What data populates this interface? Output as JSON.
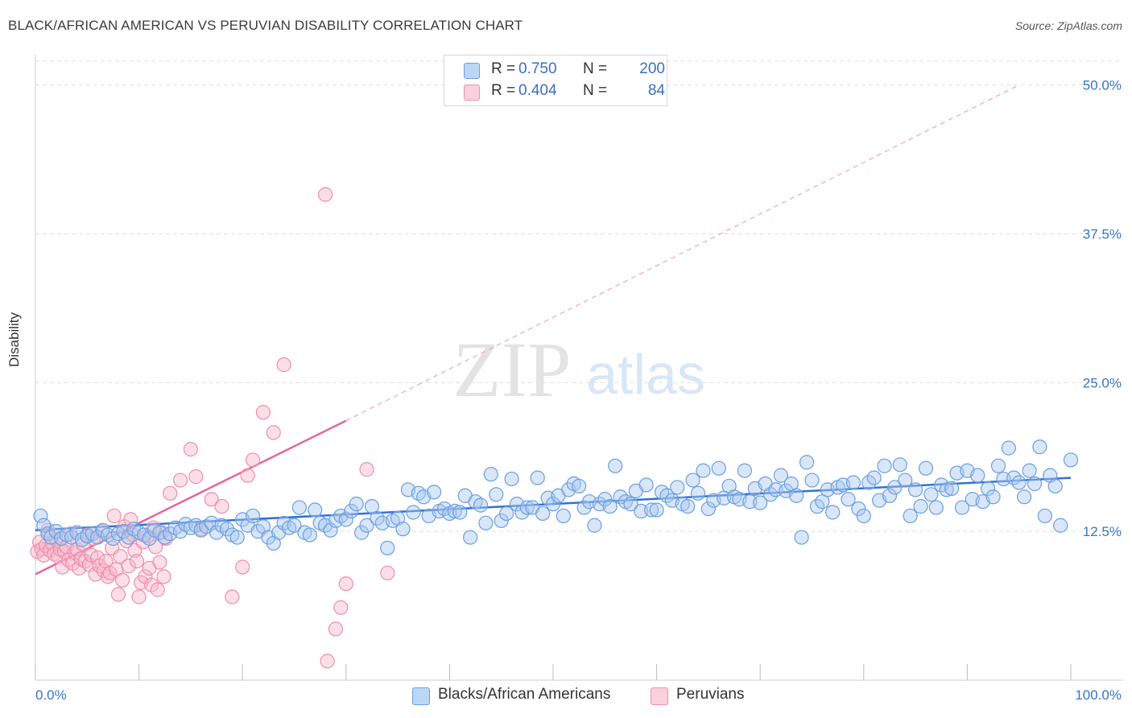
{
  "header": {
    "title": "BLACK/AFRICAN AMERICAN VS PERUVIAN DISABILITY CORRELATION CHART",
    "source_label": "Source: ZipAtlas.com"
  },
  "watermark": {
    "zip": "ZIP",
    "atlas": "atlas"
  },
  "legend_top": [
    {
      "r_label": "R =",
      "r_value": "0.750",
      "n_label": "N =",
      "n_value": "200"
    },
    {
      "r_label": "R =",
      "r_value": "0.404",
      "n_label": "N =",
      "n_value": "84"
    }
  ],
  "legend_bottom": [
    {
      "label": "Blacks/African Americans"
    },
    {
      "label": "Peruvians"
    }
  ],
  "colors": {
    "blue_fill": "#a8c8f0",
    "blue_stroke": "#6a9fe0",
    "blue_line": "#2f72d4",
    "pink_fill": "#f7b9ca",
    "pink_stroke": "#ee8eaa",
    "pink_line": "#e8659a",
    "axis_text": "#3a74c8",
    "grid": "#dddddd"
  },
  "chart_data": {
    "type": "scatter",
    "title": "BLACK/AFRICAN AMERICAN VS PERUVIAN DISABILITY CORRELATION CHART",
    "xlabel": "",
    "ylabel": "Disability",
    "xlim": [
      0,
      100
    ],
    "ylim": [
      0,
      52
    ],
    "x_tick_labels": [
      "0.0%",
      "100.0%"
    ],
    "y_ticks": [
      12.5,
      25.0,
      37.5,
      50.0
    ],
    "y_tick_labels": [
      "12.5%",
      "25.0%",
      "37.5%",
      "50.0%"
    ],
    "series": [
      {
        "name": "Blacks/African Americans",
        "r": 0.75,
        "n": 200,
        "trend": {
          "x": [
            0,
            100
          ],
          "y": [
            12.6,
            17.0
          ],
          "style": "solid"
        },
        "points": [
          [
            0.5,
            13.8
          ],
          [
            0.8,
            13.0
          ],
          [
            1.2,
            12.3
          ],
          [
            1.5,
            12.0
          ],
          [
            2.0,
            12.5
          ],
          [
            2.5,
            11.9
          ],
          [
            3.0,
            12.2
          ],
          [
            3.5,
            12.0
          ],
          [
            4.0,
            12.4
          ],
          [
            4.5,
            11.8
          ],
          [
            5.0,
            12.1
          ],
          [
            5.5,
            12.3
          ],
          [
            6.0,
            12.0
          ],
          [
            6.5,
            12.6
          ],
          [
            7.0,
            12.2
          ],
          [
            7.5,
            11.9
          ],
          [
            8.0,
            12.3
          ],
          [
            8.5,
            12.5
          ],
          [
            9.0,
            12.0
          ],
          [
            9.5,
            12.7
          ],
          [
            10.0,
            12.4
          ],
          [
            10.5,
            12.2
          ],
          [
            11.0,
            11.9
          ],
          [
            11.5,
            12.6
          ],
          [
            12.0,
            12.4
          ],
          [
            12.5,
            12.0
          ],
          [
            13.0,
            12.3
          ],
          [
            13.5,
            12.8
          ],
          [
            14.0,
            12.5
          ],
          [
            14.5,
            13.1
          ],
          [
            15.0,
            12.8
          ],
          [
            15.5,
            13.0
          ],
          [
            16.0,
            12.6
          ],
          [
            16.5,
            12.9
          ],
          [
            17.0,
            13.2
          ],
          [
            17.5,
            12.4
          ],
          [
            18.0,
            13.0
          ],
          [
            18.5,
            12.7
          ],
          [
            19.0,
            12.2
          ],
          [
            19.5,
            12.0
          ],
          [
            20.0,
            13.5
          ],
          [
            20.5,
            13.0
          ],
          [
            21.0,
            13.8
          ],
          [
            21.5,
            12.5
          ],
          [
            22.0,
            12.9
          ],
          [
            22.5,
            12.0
          ],
          [
            23.0,
            11.5
          ],
          [
            23.5,
            12.4
          ],
          [
            24.0,
            13.2
          ],
          [
            24.5,
            12.8
          ],
          [
            25.0,
            13.0
          ],
          [
            25.5,
            14.5
          ],
          [
            26.0,
            12.4
          ],
          [
            26.5,
            12.2
          ],
          [
            27.0,
            14.3
          ],
          [
            27.5,
            13.2
          ],
          [
            28.0,
            13.0
          ],
          [
            28.5,
            12.6
          ],
          [
            29.0,
            13.4
          ],
          [
            29.5,
            13.8
          ],
          [
            30.0,
            13.5
          ],
          [
            30.5,
            14.2
          ],
          [
            31.0,
            14.8
          ],
          [
            31.5,
            12.4
          ],
          [
            32.0,
            13.0
          ],
          [
            32.5,
            14.6
          ],
          [
            33.0,
            13.6
          ],
          [
            33.5,
            13.2
          ],
          [
            34.0,
            11.1
          ],
          [
            34.5,
            13.4
          ],
          [
            35.0,
            13.6
          ],
          [
            35.5,
            12.7
          ],
          [
            36.0,
            16.0
          ],
          [
            36.5,
            14.1
          ],
          [
            37.0,
            15.7
          ],
          [
            37.5,
            15.4
          ],
          [
            38.0,
            13.8
          ],
          [
            38.5,
            15.8
          ],
          [
            39.0,
            14.2
          ],
          [
            39.5,
            14.4
          ],
          [
            40.0,
            14.0
          ],
          [
            40.5,
            14.2
          ],
          [
            41.0,
            14.1
          ],
          [
            41.5,
            15.5
          ],
          [
            42.0,
            12.0
          ],
          [
            42.5,
            15.0
          ],
          [
            43.0,
            14.7
          ],
          [
            43.5,
            13.2
          ],
          [
            44.0,
            17.3
          ],
          [
            44.5,
            15.6
          ],
          [
            45.0,
            13.4
          ],
          [
            45.5,
            14.0
          ],
          [
            46.0,
            16.9
          ],
          [
            46.5,
            14.8
          ],
          [
            47.0,
            14.1
          ],
          [
            47.5,
            14.5
          ],
          [
            48.0,
            14.5
          ],
          [
            48.5,
            17.0
          ],
          [
            49.0,
            14.0
          ],
          [
            49.5,
            15.3
          ],
          [
            50.0,
            14.8
          ],
          [
            50.5,
            15.5
          ],
          [
            51.0,
            13.8
          ],
          [
            51.5,
            16.0
          ],
          [
            52.0,
            16.5
          ],
          [
            52.5,
            16.3
          ],
          [
            53.0,
            14.5
          ],
          [
            53.5,
            15.0
          ],
          [
            54.0,
            13.0
          ],
          [
            54.5,
            14.8
          ],
          [
            55.0,
            15.2
          ],
          [
            55.5,
            14.6
          ],
          [
            56.0,
            18.0
          ],
          [
            56.5,
            15.4
          ],
          [
            57.0,
            15.0
          ],
          [
            57.5,
            14.8
          ],
          [
            58.0,
            15.9
          ],
          [
            58.5,
            14.2
          ],
          [
            59.0,
            16.4
          ],
          [
            59.5,
            14.3
          ],
          [
            60.0,
            14.3
          ],
          [
            60.5,
            15.8
          ],
          [
            61.0,
            15.5
          ],
          [
            61.5,
            15.1
          ],
          [
            62.0,
            16.2
          ],
          [
            62.5,
            14.8
          ],
          [
            63.0,
            14.6
          ],
          [
            63.5,
            16.8
          ],
          [
            64.0,
            15.7
          ],
          [
            64.5,
            17.6
          ],
          [
            65.0,
            14.4
          ],
          [
            65.5,
            15.1
          ],
          [
            66.0,
            17.8
          ],
          [
            66.5,
            15.3
          ],
          [
            67.0,
            16.3
          ],
          [
            67.5,
            15.4
          ],
          [
            68.0,
            15.2
          ],
          [
            68.5,
            17.6
          ],
          [
            69.0,
            15.0
          ],
          [
            69.5,
            16.1
          ],
          [
            70.0,
            14.9
          ],
          [
            70.5,
            16.5
          ],
          [
            71.0,
            15.6
          ],
          [
            71.5,
            16.0
          ],
          [
            72.0,
            17.2
          ],
          [
            72.5,
            15.9
          ],
          [
            73.0,
            16.5
          ],
          [
            73.5,
            15.5
          ],
          [
            74.0,
            12.0
          ],
          [
            74.5,
            18.3
          ],
          [
            75.0,
            16.8
          ],
          [
            75.5,
            14.6
          ],
          [
            76.0,
            15.0
          ],
          [
            76.5,
            16.0
          ],
          [
            77.0,
            14.1
          ],
          [
            77.5,
            16.2
          ],
          [
            78.0,
            16.4
          ],
          [
            78.5,
            15.2
          ],
          [
            79.0,
            16.6
          ],
          [
            79.5,
            14.4
          ],
          [
            80.0,
            13.8
          ],
          [
            80.5,
            16.6
          ],
          [
            81.0,
            17.0
          ],
          [
            81.5,
            15.1
          ],
          [
            82.0,
            18.0
          ],
          [
            82.5,
            15.5
          ],
          [
            83.0,
            16.2
          ],
          [
            83.5,
            18.1
          ],
          [
            84.0,
            16.8
          ],
          [
            84.5,
            13.8
          ],
          [
            85.0,
            16.0
          ],
          [
            85.5,
            14.6
          ],
          [
            86.0,
            17.8
          ],
          [
            86.5,
            15.6
          ],
          [
            87.0,
            14.5
          ],
          [
            87.5,
            16.4
          ],
          [
            88.0,
            16.0
          ],
          [
            88.5,
            16.1
          ],
          [
            89.0,
            17.4
          ],
          [
            89.5,
            14.5
          ],
          [
            90.0,
            17.6
          ],
          [
            90.5,
            15.2
          ],
          [
            91.0,
            17.2
          ],
          [
            91.5,
            15.0
          ],
          [
            92.0,
            16.1
          ],
          [
            92.5,
            15.4
          ],
          [
            93.0,
            18.0
          ],
          [
            93.5,
            16.9
          ],
          [
            94.0,
            19.5
          ],
          [
            94.5,
            17.0
          ],
          [
            95.0,
            16.6
          ],
          [
            95.5,
            15.4
          ],
          [
            96.0,
            17.6
          ],
          [
            96.5,
            16.5
          ],
          [
            97.0,
            19.6
          ],
          [
            97.5,
            13.8
          ],
          [
            98.0,
            17.2
          ],
          [
            98.5,
            16.3
          ],
          [
            99.0,
            13.0
          ],
          [
            100.0,
            18.5
          ]
        ]
      },
      {
        "name": "Peruvians",
        "r": 0.404,
        "n": 84,
        "trend": {
          "x": [
            0,
            30
          ],
          "y": [
            8.9,
            21.8
          ],
          "style": "solid",
          "extension": {
            "x": [
              30,
              95
            ],
            "y": [
              21.8,
              50.0
            ],
            "style": "dashed"
          }
        },
        "points": [
          [
            0.2,
            10.8
          ],
          [
            0.4,
            11.6
          ],
          [
            0.6,
            11.0
          ],
          [
            0.8,
            10.5
          ],
          [
            1.0,
            11.3
          ],
          [
            1.2,
            12.6
          ],
          [
            1.4,
            10.9
          ],
          [
            1.6,
            11.5
          ],
          [
            1.8,
            10.6
          ],
          [
            2.0,
            11.8
          ],
          [
            2.2,
            10.4
          ],
          [
            2.4,
            11.0
          ],
          [
            2.6,
            9.5
          ],
          [
            2.8,
            10.8
          ],
          [
            3.0,
            11.2
          ],
          [
            3.2,
            10.1
          ],
          [
            3.4,
            12.3
          ],
          [
            3.6,
            9.8
          ],
          [
            3.8,
            10.7
          ],
          [
            4.0,
            11.0
          ],
          [
            4.2,
            9.4
          ],
          [
            4.4,
            10.2
          ],
          [
            4.6,
            11.4
          ],
          [
            4.8,
            10.0
          ],
          [
            5.0,
            12.2
          ],
          [
            5.2,
            9.7
          ],
          [
            5.4,
            10.5
          ],
          [
            5.6,
            11.9
          ],
          [
            5.8,
            8.9
          ],
          [
            6.0,
            10.3
          ],
          [
            6.2,
            9.6
          ],
          [
            6.4,
            12.5
          ],
          [
            6.6,
            9.2
          ],
          [
            6.8,
            10.0
          ],
          [
            7.0,
            8.7
          ],
          [
            7.2,
            9.0
          ],
          [
            7.4,
            11.1
          ],
          [
            7.6,
            13.8
          ],
          [
            7.8,
            9.3
          ],
          [
            8.0,
            7.2
          ],
          [
            8.2,
            10.4
          ],
          [
            8.4,
            8.4
          ],
          [
            8.6,
            12.9
          ],
          [
            8.8,
            11.7
          ],
          [
            9.0,
            9.6
          ],
          [
            9.2,
            13.5
          ],
          [
            9.4,
            12.2
          ],
          [
            9.6,
            10.9
          ],
          [
            9.8,
            10.0
          ],
          [
            10.0,
            7.0
          ],
          [
            10.2,
            8.2
          ],
          [
            10.4,
            11.6
          ],
          [
            10.6,
            8.7
          ],
          [
            10.8,
            12.1
          ],
          [
            11.0,
            9.4
          ],
          [
            11.2,
            8.0
          ],
          [
            11.4,
            12.8
          ],
          [
            11.6,
            11.2
          ],
          [
            11.8,
            7.6
          ],
          [
            12.0,
            9.9
          ],
          [
            12.2,
            12.4
          ],
          [
            12.4,
            8.7
          ],
          [
            12.6,
            11.9
          ],
          [
            13.0,
            15.7
          ],
          [
            14.0,
            16.8
          ],
          [
            15.0,
            19.4
          ],
          [
            15.5,
            17.1
          ],
          [
            16.0,
            12.7
          ],
          [
            17.0,
            15.2
          ],
          [
            18.0,
            14.6
          ],
          [
            19.0,
            7.0
          ],
          [
            20.0,
            9.5
          ],
          [
            20.5,
            17.2
          ],
          [
            21.0,
            18.5
          ],
          [
            22.0,
            22.5
          ],
          [
            23.0,
            20.8
          ],
          [
            24.0,
            26.5
          ],
          [
            28.0,
            40.8
          ],
          [
            28.2,
            1.6
          ],
          [
            29.0,
            4.3
          ],
          [
            29.5,
            6.1
          ],
          [
            30.0,
            8.1
          ],
          [
            32.0,
            17.7
          ],
          [
            34.0,
            9.0
          ]
        ]
      }
    ]
  }
}
